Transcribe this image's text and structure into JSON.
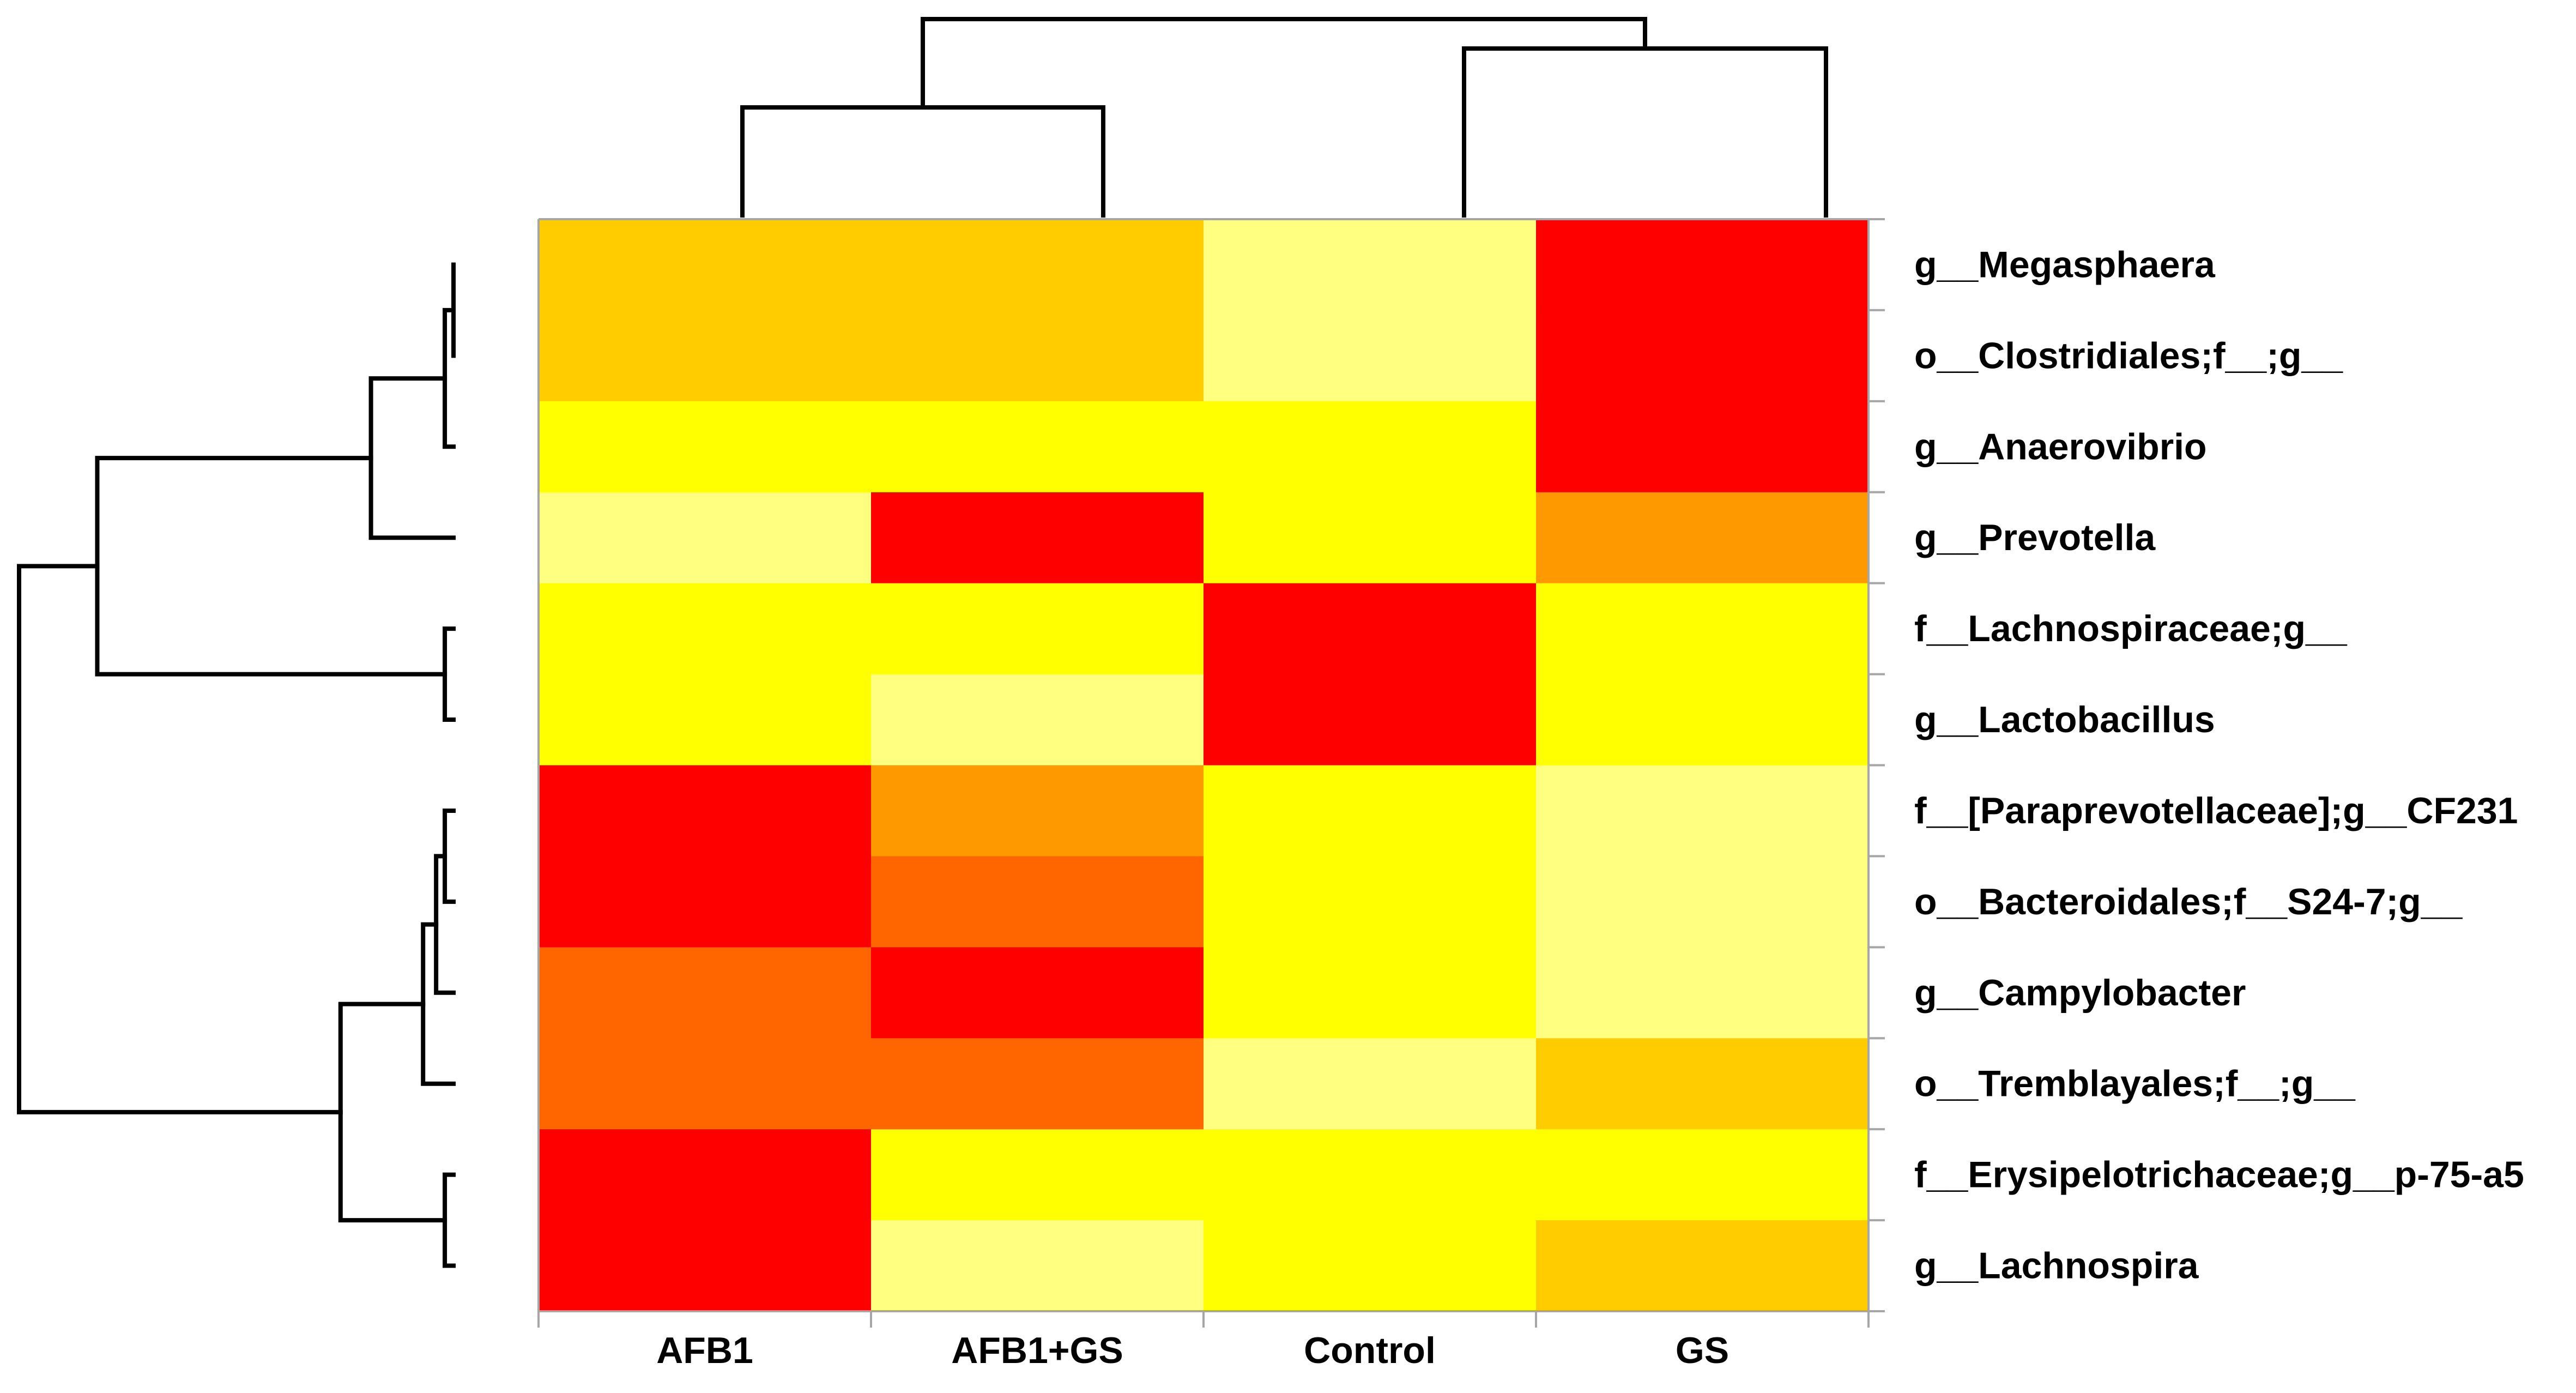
{
  "chart_data": {
    "type": "heatmap",
    "title": "",
    "xlabel": "",
    "ylabel": "",
    "columns": [
      "AFB1",
      "AFB1+GS",
      "Control",
      "GS"
    ],
    "rows": [
      "g__Megasphaera",
      "o__Clostridiales;f__;g__",
      "g__Anaerovibrio",
      "g__Prevotella",
      "f__Lachnospiraceae;g__",
      "g__Lactobacillus",
      "f__[Paraprevotellaceae];g__CF231",
      "o__Bacteroidales;f__S24-7;g__",
      "g__Campylobacter",
      "o__Tremblayales;f__;g__",
      "f__Erysipelotrichaceae;g__p-75-a5",
      "g__Lachnospira"
    ],
    "values": [
      [
        1,
        1,
        -1,
        2
      ],
      [
        1,
        1,
        -1,
        2
      ],
      [
        0,
        0,
        0,
        2
      ],
      [
        -1,
        2,
        0,
        1.5
      ],
      [
        0,
        0,
        2,
        0
      ],
      [
        0,
        -1,
        2,
        0
      ],
      [
        2,
        1.5,
        0,
        -1
      ],
      [
        2,
        1.75,
        0,
        -1
      ],
      [
        1.75,
        2,
        0,
        -1
      ],
      [
        1.75,
        1.75,
        -1,
        1
      ],
      [
        2,
        0,
        0,
        0
      ],
      [
        2,
        -1,
        0,
        1
      ]
    ],
    "color_scale": [
      {
        "value": -1,
        "color": "#FFFF80"
      },
      {
        "value": 0,
        "color": "#FFFF00"
      },
      {
        "value": 1,
        "color": "#FFCC00"
      },
      {
        "value": 1.5,
        "color": "#FF9900"
      },
      {
        "value": 1.75,
        "color": "#FF6600"
      },
      {
        "value": 2,
        "color": "#FF0000"
      }
    ],
    "column_dendrogram": {
      "merges": [
        {
          "left": "AFB1",
          "right": "AFB1+GS",
          "height": 0.55
        },
        {
          "left": "Control",
          "right": "GS",
          "height": 0.85
        },
        {
          "left": "AFB1 | AFB1+GS",
          "right": "Control | GS",
          "height": 1.0
        }
      ]
    },
    "row_dendrogram": {
      "merges": [
        {
          "left": "g__Megasphaera",
          "right": "o__Clostridiales;f__;g__",
          "height": 0.0
        },
        {
          "left": "g__Megasphaera | o__Clostridiales;f__;g__",
          "right": "g__Anaerovibrio",
          "height": 0.02
        },
        {
          "left": "cluster_A3",
          "right": "g__Prevotella",
          "height": 0.19
        },
        {
          "left": "f__Lachnospiraceae;g__",
          "right": "g__Lactobacillus",
          "height": 0.02
        },
        {
          "left": "cluster_A4",
          "right": "cluster_Lachno_Lacto",
          "height": 0.82
        },
        {
          "left": "f__[Paraprevotellaceae];g__CF231",
          "right": "o__Bacteroidales;f__S24-7;g__",
          "height": 0.02
        },
        {
          "left": "cluster_B2",
          "right": "g__Campylobacter",
          "height": 0.04
        },
        {
          "left": "cluster_B3",
          "right": "o__Tremblayales;f__;g__",
          "height": 0.07
        },
        {
          "left": "f__Erysipelotrichaceae;g__p-75-a5",
          "right": "g__Lachnospira",
          "height": 0.02
        },
        {
          "left": "cluster_B4",
          "right": "cluster_Erysi_Lachnospira",
          "height": 0.26
        },
        {
          "left": "cluster_top",
          "right": "cluster_bottom",
          "height": 1.0
        }
      ]
    }
  }
}
